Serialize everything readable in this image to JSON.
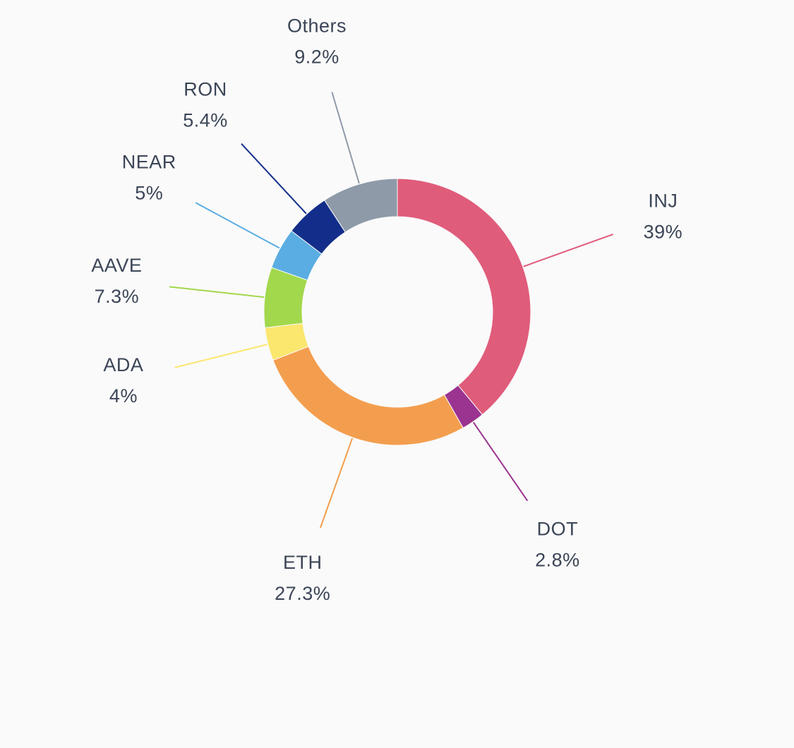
{
  "chart_data": {
    "type": "pie",
    "variant": "donut",
    "start_angle": "12 o'clock",
    "direction": "clockwise",
    "slices": [
      {
        "label": "INJ",
        "value": 39.0,
        "value_text": "39%",
        "color": "#e05c7b"
      },
      {
        "label": "DOT",
        "value": 2.8,
        "value_text": "2.8%",
        "color": "#9b3490"
      },
      {
        "label": "ETH",
        "value": 27.3,
        "value_text": "27.3%",
        "color": "#f39e4e"
      },
      {
        "label": "ADA",
        "value": 4.0,
        "value_text": "4%",
        "color": "#fbe66e"
      },
      {
        "label": "AAVE",
        "value": 7.3,
        "value_text": "7.3%",
        "color": "#a2d84c"
      },
      {
        "label": "NEAR",
        "value": 5.0,
        "value_text": "5%",
        "color": "#5aade2"
      },
      {
        "label": "RON",
        "value": 5.4,
        "value_text": "5.4%",
        "color": "#132e8a"
      },
      {
        "label": "Others",
        "value": 9.2,
        "value_text": "9.2%",
        "color": "#8e9aa8"
      }
    ],
    "label_color": "#3b4556",
    "background": "#fafafa"
  }
}
